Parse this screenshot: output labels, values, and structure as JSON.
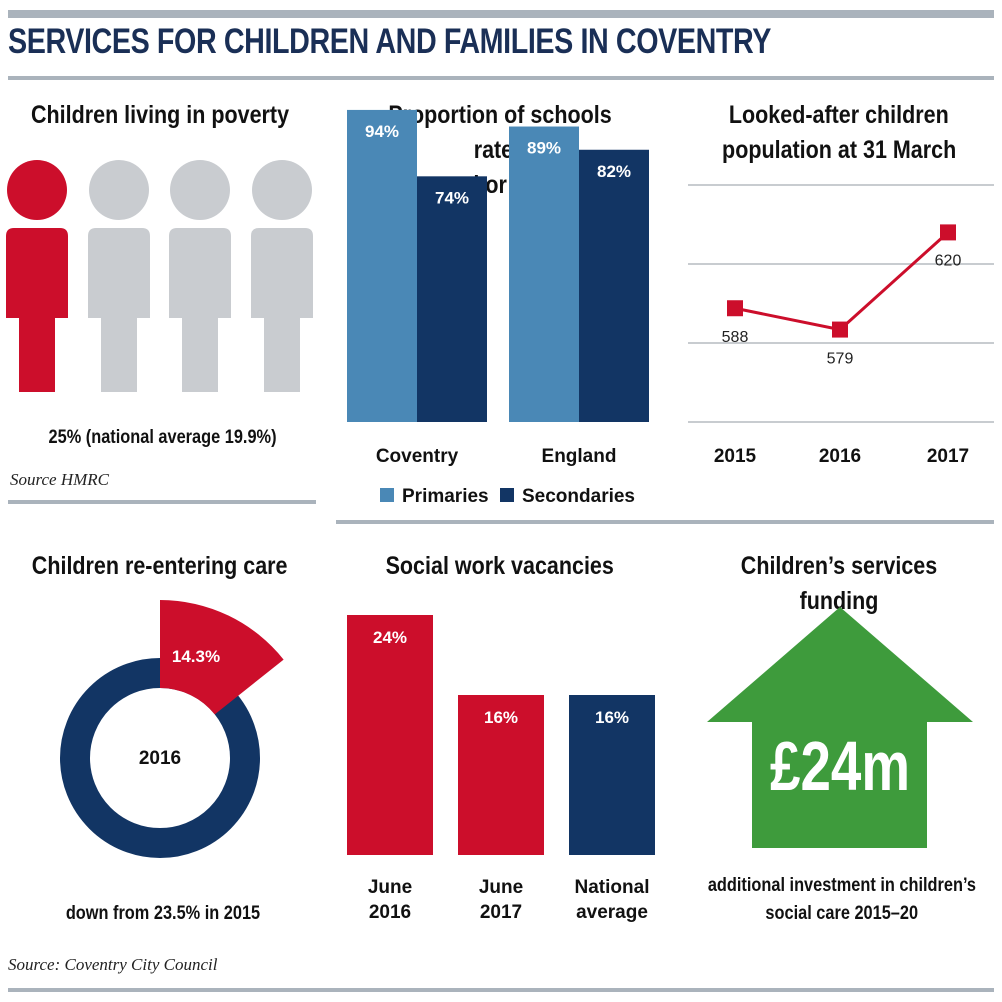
{
  "title": "SERVICES FOR CHILDREN AND FAMILIES IN COVENTRY",
  "colors": {
    "red": "#cc0e2b",
    "grey": "#c9ccd0",
    "light_blue": "#4a88b6",
    "navy": "#123564",
    "green": "#3e9b3c",
    "grid": "#c8ccd0"
  },
  "poverty": {
    "title": "Children living in poverty",
    "caption": "25% (national average 19.9%)",
    "source": "Source HMRC",
    "icon": "person-icon",
    "highlighted_fraction": 0.25
  },
  "charts": {
    "schools": {
      "type": "bar",
      "title_lines": [
        "Proportion of schools rated",
        "good or better"
      ],
      "categories": [
        "Coventry",
        "England"
      ],
      "series": [
        {
          "name": "Primaries",
          "values": [
            94,
            89
          ],
          "labels": [
            "94%",
            "89%"
          ],
          "color": "#4a88b6"
        },
        {
          "name": "Secondaries",
          "values": [
            74,
            82
          ],
          "labels": [
            "74%",
            "82%"
          ],
          "color": "#123564"
        }
      ],
      "ylim": [
        0,
        100
      ],
      "legend": "bottom"
    },
    "looked_after": {
      "type": "line",
      "title_lines": [
        "Looked-after children",
        "population at 31 March"
      ],
      "x": [
        "2015",
        "2016",
        "2017"
      ],
      "y": [
        588,
        579,
        620
      ],
      "labels": [
        "588",
        "579",
        "620"
      ],
      "ylim": [
        540,
        640
      ],
      "grid": true
    },
    "reentering": {
      "type": "pie",
      "title": "Children re-entering care",
      "value": 14.3,
      "label": "14.3%",
      "center_label": "2016",
      "caption": "down from 23.5% in 2015"
    },
    "vacancies": {
      "type": "bar",
      "title": "Social work vacancies",
      "categories": [
        [
          "June",
          "2016"
        ],
        [
          "June",
          "2017"
        ],
        [
          "National",
          "average"
        ]
      ],
      "values": [
        24,
        16,
        16
      ],
      "labels": [
        "24%",
        "16%",
        "16%"
      ],
      "colors": [
        "#cc0e2b",
        "#cc0e2b",
        "#123564"
      ],
      "ylim": [
        0,
        28
      ]
    }
  },
  "funding": {
    "title": "Children’s services funding",
    "amount": "£24m",
    "caption_lines": [
      "additional investment in children’s",
      "social care 2015–20"
    ],
    "icon": "up-arrow-icon"
  },
  "footer_source": "Source: Coventry City Council"
}
